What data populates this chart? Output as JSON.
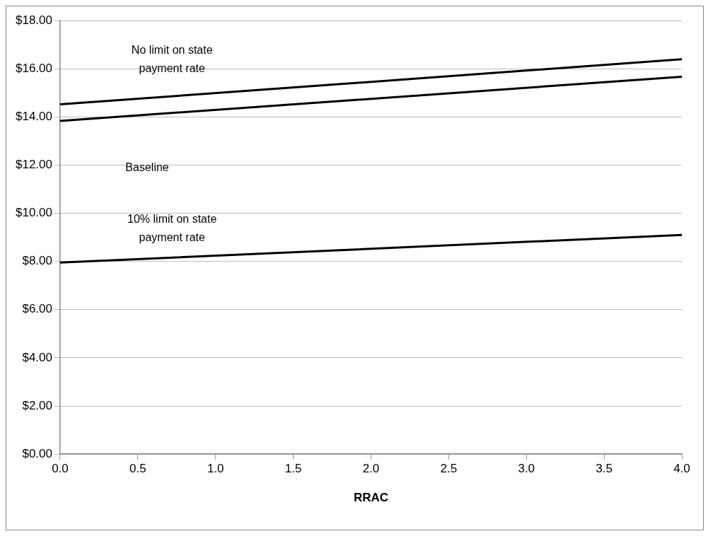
{
  "chart_data": {
    "type": "line",
    "xlabel": "RRAC",
    "x": [
      0,
      4
    ],
    "series": [
      {
        "color": "#000000",
        "values": [
          14.52,
          16.39
        ]
      },
      {
        "color": "#000000",
        "values": [
          13.83,
          15.67
        ]
      },
      {
        "color": "#000000",
        "values": [
          7.95,
          9.1
        ]
      }
    ],
    "xlim": [
      0,
      4
    ],
    "xticks": [
      {
        "value": 0,
        "label": "0.0"
      },
      {
        "value": 0.5,
        "label": "0.5"
      },
      {
        "value": 1,
        "label": "1.0"
      },
      {
        "value": 1.5,
        "label": "1.5"
      },
      {
        "value": 2,
        "label": "2.0"
      },
      {
        "value": 2.5,
        "label": "2.5"
      },
      {
        "value": 3,
        "label": "3.0"
      },
      {
        "value": 3.5,
        "label": "3.5"
      },
      {
        "value": 4,
        "label": "4.0"
      }
    ],
    "ylim": [
      0,
      18
    ],
    "yticks": [
      {
        "value": 0,
        "label": "$0.00"
      },
      {
        "value": 2,
        "label": "$2.00"
      },
      {
        "value": 4,
        "label": "$4.00"
      },
      {
        "value": 6,
        "label": "$6.00"
      },
      {
        "value": 8,
        "label": "$8.00"
      },
      {
        "value": 10,
        "label": "$10.00"
      },
      {
        "value": 12,
        "label": "$12.00"
      },
      {
        "value": 14,
        "label": "$14.00"
      },
      {
        "value": 16,
        "label": "$16.00"
      },
      {
        "value": 18,
        "label": "$18.00"
      }
    ],
    "grid": "y",
    "legend": false,
    "marker": "none",
    "line_style": "solid",
    "annotations": [
      "No limit on state payment rate",
      "Baseline",
      "10% limit on state payment rate"
    ]
  }
}
